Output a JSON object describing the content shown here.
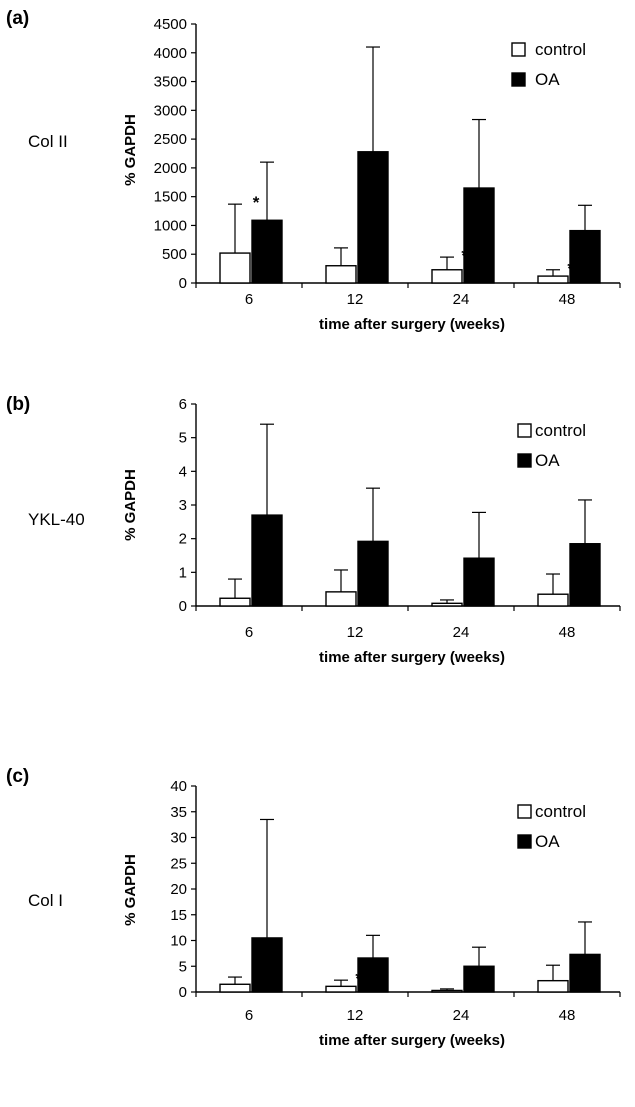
{
  "chart_data": [
    {
      "type": "bar",
      "panel": "(a)",
      "row_label": "Col II",
      "ylabel": "% GAPDH",
      "xlabel": "time after surgery (weeks)",
      "ylim": [
        0,
        4500
      ],
      "yticks": [
        0,
        500,
        1000,
        1500,
        2000,
        2500,
        3000,
        3500,
        4000,
        4500
      ],
      "categories": [
        "6",
        "12",
        "24",
        "48"
      ],
      "legend_position": "top-right",
      "series": [
        {
          "name": "control",
          "color": "#ffffff",
          "values": [
            520,
            300,
            230,
            120
          ],
          "errors": [
            850,
            310,
            220,
            110
          ]
        },
        {
          "name": "OA",
          "color": "#000000",
          "values": [
            1090,
            2280,
            1650,
            910
          ],
          "errors": [
            1010,
            1820,
            1190,
            440
          ]
        }
      ],
      "annotations": [
        "*",
        "*",
        "**",
        "**"
      ]
    },
    {
      "type": "bar",
      "panel": "(b)",
      "row_label": "YKL-40",
      "ylabel": "% GAPDH",
      "xlabel": "time after surgery (weeks)",
      "ylim": [
        0,
        6
      ],
      "yticks": [
        0,
        1,
        2,
        3,
        4,
        5,
        6
      ],
      "categories": [
        "6",
        "12",
        "24",
        "48"
      ],
      "legend_position": "top-right",
      "series": [
        {
          "name": "control",
          "color": "#ffffff",
          "values": [
            0.23,
            0.42,
            0.08,
            0.35
          ],
          "errors": [
            0.57,
            0.65,
            0.1,
            0.6
          ]
        },
        {
          "name": "OA",
          "color": "#000000",
          "values": [
            2.7,
            1.92,
            1.42,
            1.85
          ],
          "errors": [
            2.7,
            1.58,
            1.36,
            1.3
          ]
        }
      ],
      "annotations": [
        "*",
        "*",
        "*",
        "*"
      ]
    },
    {
      "type": "bar",
      "panel": "(c)",
      "row_label": "Col I",
      "ylabel": "% GAPDH",
      "xlabel": "time after surgery (weeks)",
      "ylim": [
        0,
        40
      ],
      "yticks": [
        0,
        5,
        10,
        15,
        20,
        25,
        30,
        35,
        40
      ],
      "categories": [
        "6",
        "12",
        "24",
        "48"
      ],
      "legend_position": "top-right",
      "series": [
        {
          "name": "control",
          "color": "#ffffff",
          "values": [
            1.5,
            1.1,
            0.3,
            2.2
          ],
          "errors": [
            1.4,
            1.2,
            0.3,
            3.0
          ]
        },
        {
          "name": "OA",
          "color": "#000000",
          "values": [
            10.5,
            6.6,
            5.0,
            7.3
          ],
          "errors": [
            23.0,
            4.4,
            3.7,
            6.3
          ]
        }
      ],
      "annotations": [
        "",
        "**",
        "*",
        "*"
      ]
    }
  ]
}
